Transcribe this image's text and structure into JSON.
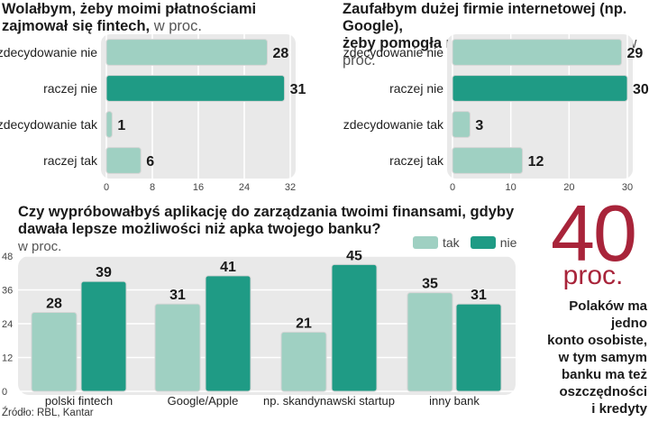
{
  "colors": {
    "tak": "#9fd0c2",
    "nie": "#1f9b85",
    "panel": "#e9e9e9",
    "accent": "#a8243a"
  },
  "chart1": {
    "title_line1": "Wolałbym, żeby moimi płatnościami",
    "title_line2": "zajmował się fintech,",
    "unit": " w proc."
  },
  "chart2": {
    "title_line1": "Zaufałbym dużej firmie internetowej (np. Google),",
    "title_line2": "żeby pomogła mi zarządzać wydatkami,",
    "unit": " w proc."
  },
  "chart3": {
    "title_line1": "Czy wypróbowałbyś aplikację do zarządzania twoimi finansami, gdyby",
    "title_line2": "dawała lepsze możliwości niż apka twojego banku?",
    "unit": "w proc.",
    "legend_tak": "tak",
    "legend_nie": "nie"
  },
  "stat": {
    "number": "40",
    "unit": "proc.",
    "line1": "Polaków ma jedno",
    "line2": "konto osobiste,",
    "line3": "w tym samym",
    "line4": "banku ma też",
    "line5": "oszczędności",
    "line6": "i kredyty"
  },
  "source": "Źródło: RBL, Kantar",
  "chart_data": [
    {
      "type": "bar",
      "orientation": "horizontal",
      "title": "Wolałbym, żeby moimi płatnościami zajmował się fintech, w proc.",
      "categories": [
        "zdecydowanie nie",
        "raczej nie",
        "zdecydowanie tak",
        "raczej tak"
      ],
      "values": [
        28,
        31,
        1,
        6
      ],
      "highlight": [
        false,
        true,
        false,
        false
      ],
      "xlim": [
        0,
        32
      ],
      "xticks": [
        0,
        8,
        16,
        24,
        32
      ]
    },
    {
      "type": "bar",
      "orientation": "horizontal",
      "title": "Zaufałbym dużej firmie internetowej (np. Google), żeby pomogła mi zarządzać wydatkami, w proc.",
      "categories": [
        "zdecydowanie nie",
        "raczej nie",
        "zdecydowanie tak",
        "raczej tak"
      ],
      "values": [
        29,
        30,
        3,
        12
      ],
      "highlight": [
        false,
        true,
        false,
        false
      ],
      "xlim": [
        0,
        30
      ],
      "xticks": [
        0,
        10,
        20,
        30
      ]
    },
    {
      "type": "bar",
      "orientation": "vertical",
      "title": "Czy wypróbowałbyś aplikację do zarządzania twoimi finansami, gdyby dawała lepsze możliwości niż apka twojego banku? w proc.",
      "categories": [
        "polski fintech",
        "Google/Apple",
        "np. skandynawski startup",
        "inny bank"
      ],
      "series": [
        {
          "name": "tak",
          "values": [
            28,
            31,
            21,
            35
          ]
        },
        {
          "name": "nie",
          "values": [
            39,
            41,
            45,
            31
          ]
        }
      ],
      "ylim": [
        0,
        48
      ],
      "yticks": [
        0,
        12,
        24,
        36,
        48
      ],
      "legend": "top-right"
    }
  ]
}
